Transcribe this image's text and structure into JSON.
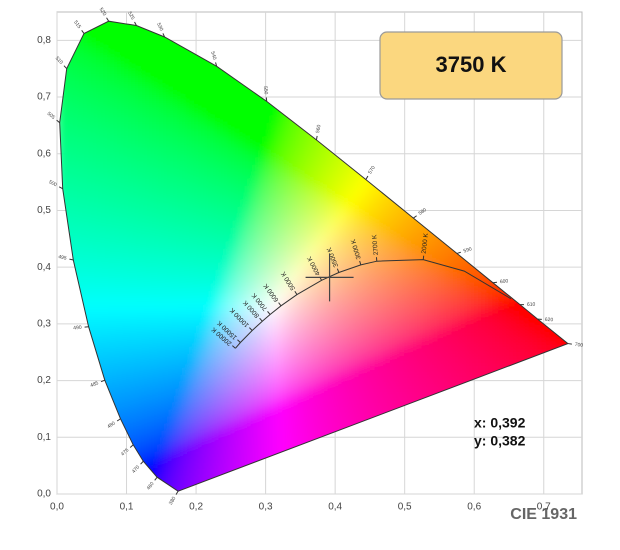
{
  "chart_data": {
    "type": "chromaticity",
    "title": "CIE 1931",
    "xlim": [
      0,
      0.755
    ],
    "ylim": [
      0,
      0.85
    ],
    "xticks": [
      {
        "value": 0,
        "label": "0,0"
      },
      {
        "value": 0.1,
        "label": "0,1"
      },
      {
        "value": 0.2,
        "label": "0,2"
      },
      {
        "value": 0.3,
        "label": "0,3"
      },
      {
        "value": 0.4,
        "label": "0,4"
      },
      {
        "value": 0.5,
        "label": "0,5"
      },
      {
        "value": 0.6,
        "label": "0,6"
      },
      {
        "value": 0.7,
        "label": "0,7"
      }
    ],
    "yticks": [
      {
        "value": 0,
        "label": "0,0"
      },
      {
        "value": 0.1,
        "label": "0,1"
      },
      {
        "value": 0.2,
        "label": "0,2"
      },
      {
        "value": 0.3,
        "label": "0,3"
      },
      {
        "value": 0.4,
        "label": "0,4"
      },
      {
        "value": 0.5,
        "label": "0,5"
      },
      {
        "value": 0.6,
        "label": "0,6"
      },
      {
        "value": 0.7,
        "label": "0,7"
      },
      {
        "value": 0.8,
        "label": "0,8"
      }
    ],
    "grid": true,
    "spectral_locus": {
      "wavelengths": [
        380,
        460,
        470,
        475,
        480,
        485,
        490,
        495,
        500,
        505,
        510,
        515,
        520,
        525,
        530,
        540,
        550,
        560,
        570,
        580,
        590,
        600,
        610,
        620,
        700
      ],
      "x": [
        0.1741,
        0.144,
        0.1241,
        0.1096,
        0.0913,
        0.0687,
        0.0454,
        0.0235,
        0.0082,
        0.0039,
        0.0139,
        0.0389,
        0.0743,
        0.1142,
        0.1547,
        0.2296,
        0.3016,
        0.3731,
        0.4441,
        0.5125,
        0.5752,
        0.627,
        0.6658,
        0.6915,
        0.7347
      ],
      "y": [
        0.005,
        0.0297,
        0.0578,
        0.0868,
        0.1327,
        0.2007,
        0.295,
        0.4127,
        0.5384,
        0.6548,
        0.7502,
        0.812,
        0.8338,
        0.8262,
        0.8059,
        0.7543,
        0.6923,
        0.6245,
        0.5547,
        0.4866,
        0.4242,
        0.3725,
        0.334,
        0.3083,
        0.2653
      ]
    },
    "planckian_locus": {
      "labels": [
        null,
        null,
        "2000 K",
        "2700 K",
        "3000 K",
        "3500 K",
        "4000 K",
        "5000 K",
        "6000 K",
        "7000 K",
        "8000 K",
        "10000 K",
        "15000 K",
        "20000 K"
      ],
      "x": [
        0.6528,
        0.5857,
        0.5267,
        0.4599,
        0.4369,
        0.4053,
        0.3805,
        0.3451,
        0.3221,
        0.3064,
        0.2952,
        0.2807,
        0.2637,
        0.2565
      ],
      "y": [
        0.3444,
        0.3931,
        0.4133,
        0.4106,
        0.4041,
        0.3907,
        0.3768,
        0.3516,
        0.3318,
        0.3166,
        0.3048,
        0.2883,
        0.2671,
        0.257
      ]
    },
    "marker": {
      "x": 0.392,
      "y": 0.382,
      "x_label": "x: 0,392",
      "y_label": "y: 0,382"
    },
    "cct_label": "3750 K"
  }
}
